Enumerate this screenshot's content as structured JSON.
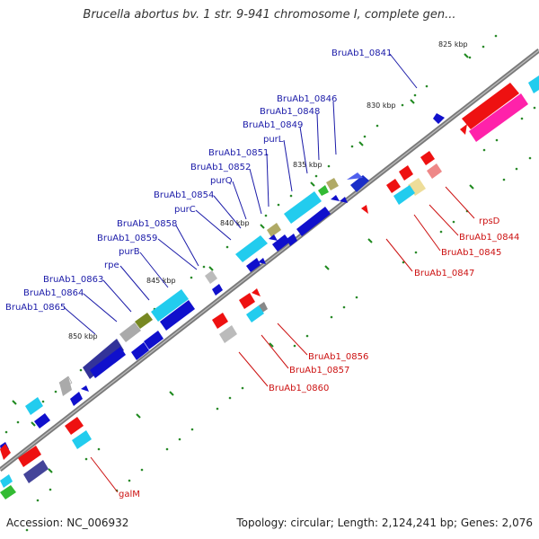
{
  "title": "Brucella abortus bv. 1 str. 9-941 chromosome I, complete gen...",
  "footer": {
    "accession": "Accession: NC_006932",
    "summary": "Topology: circular; Length: 2,124,241 bp; Genes: 2,076"
  },
  "ticks": [
    "825 kbp",
    "830 kbp",
    "835 kbp",
    "840 kbp",
    "845 kbp",
    "850 kbp"
  ],
  "genes_top": [
    "BruAb1_0841",
    "BruAb1_0846",
    "BruAb1_0848",
    "BruAb1_0849",
    "purL",
    "BruAb1_0851",
    "BruAb1_0852",
    "purQ",
    "BruAb1_0854",
    "purC",
    "BruAb1_0858",
    "BruAb1_0859",
    "purB",
    "rpe",
    "BruAb1_0863",
    "BruAb1_0864",
    "BruAb1_0865"
  ],
  "genes_bottom": [
    "rpsD",
    "BruAb1_0844",
    "BruAb1_0845",
    "BruAb1_0847",
    "BruAb1_0856",
    "BruAb1_0857",
    "BruAb1_0860",
    "galM"
  ],
  "colors": {
    "forward": "#1010cc",
    "reverse": "#ee1111",
    "label_top": "#1a1aa8",
    "label_bottom": "#cc1111",
    "backbone": "#777777"
  }
}
